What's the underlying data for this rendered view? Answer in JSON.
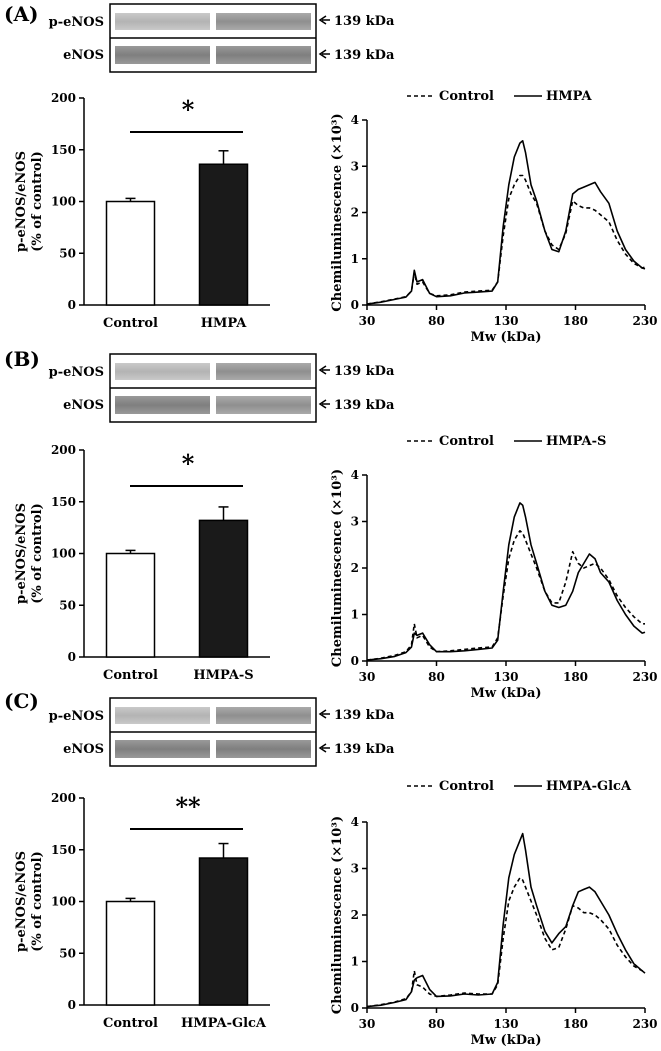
{
  "figure": {
    "panels": [
      {
        "label": "(A)",
        "blot": {
          "lanes": [
            "p-eNOS",
            "eNOS"
          ],
          "mw": "139 kDa"
        },
        "significance": "*"
      },
      {
        "label": "(B)",
        "blot": {
          "lanes": [
            "p-eNOS",
            "eNOS"
          ],
          "mw": "139 kDa"
        },
        "significance": "*"
      },
      {
        "label": "(C)",
        "blot": {
          "lanes": [
            "p-eNOS",
            "eNOS"
          ],
          "mw": "139 kDa"
        },
        "significance": "**"
      }
    ]
  },
  "chart_data": [
    {
      "type": "bar",
      "panel": "(A)",
      "categories": [
        "Control",
        "HMPA"
      ],
      "values": [
        100,
        136
      ],
      "errors": [
        3,
        13
      ],
      "colors": [
        "#ffffff",
        "#1a1a1a"
      ],
      "ylabel": "p-eNOS/eNOS\n(% of control)",
      "ylim": [
        0,
        200
      ],
      "yticks": [
        0,
        50,
        100,
        150,
        200
      ]
    },
    {
      "type": "line",
      "panel": "(A)",
      "xlabel": "Mw (kDa)",
      "ylabel": "Chemiluminescence (×10³)",
      "xlim": [
        30,
        230
      ],
      "ylim": [
        0,
        4
      ],
      "xticks": [
        30,
        80,
        130,
        180,
        230
      ],
      "yticks": [
        0,
        1,
        2,
        3,
        4
      ],
      "legend_position": "top",
      "series": [
        {
          "name": "Control",
          "style": "dashed",
          "x": [
            30,
            40,
            50,
            58,
            62,
            64,
            66,
            70,
            75,
            80,
            90,
            100,
            110,
            120,
            124,
            128,
            132,
            136,
            140,
            142,
            144,
            148,
            152,
            158,
            163,
            168,
            173,
            178,
            182,
            186,
            190,
            194,
            198,
            204,
            210,
            216,
            222,
            228,
            230
          ],
          "y": [
            0.02,
            0.07,
            0.13,
            0.18,
            0.3,
            0.7,
            0.45,
            0.5,
            0.25,
            0.2,
            0.22,
            0.28,
            0.3,
            0.32,
            0.5,
            1.5,
            2.3,
            2.6,
            2.8,
            2.8,
            2.7,
            2.4,
            2.2,
            1.6,
            1.3,
            1.2,
            1.55,
            2.25,
            2.15,
            2.1,
            2.1,
            2.05,
            1.95,
            1.8,
            1.4,
            1.1,
            0.9,
            0.8,
            0.82
          ]
        },
        {
          "name": "HMPA",
          "style": "solid",
          "x": [
            30,
            40,
            50,
            58,
            62,
            64,
            66,
            70,
            75,
            80,
            90,
            100,
            110,
            120,
            124,
            128,
            132,
            136,
            140,
            142,
            144,
            148,
            152,
            158,
            163,
            168,
            173,
            178,
            182,
            186,
            190,
            194,
            198,
            204,
            210,
            216,
            222,
            228,
            230
          ],
          "y": [
            0.02,
            0.06,
            0.12,
            0.17,
            0.3,
            0.75,
            0.5,
            0.55,
            0.25,
            0.18,
            0.2,
            0.26,
            0.28,
            0.3,
            0.5,
            1.7,
            2.6,
            3.2,
            3.5,
            3.55,
            3.3,
            2.6,
            2.25,
            1.6,
            1.2,
            1.15,
            1.6,
            2.4,
            2.5,
            2.55,
            2.6,
            2.65,
            2.45,
            2.2,
            1.6,
            1.2,
            0.95,
            0.8,
            0.78
          ]
        }
      ]
    },
    {
      "type": "bar",
      "panel": "(B)",
      "categories": [
        "Control",
        "HMPA-S"
      ],
      "values": [
        100,
        132
      ],
      "errors": [
        3,
        13
      ],
      "colors": [
        "#ffffff",
        "#1a1a1a"
      ],
      "ylabel": "p-eNOS/eNOS\n(% of control)",
      "ylim": [
        0,
        200
      ],
      "yticks": [
        0,
        50,
        100,
        150,
        200
      ]
    },
    {
      "type": "line",
      "panel": "(B)",
      "xlabel": "Mw (kDa)",
      "ylabel": "Chemiluminescence (×10³)",
      "xlim": [
        30,
        230
      ],
      "ylim": [
        0,
        4
      ],
      "xticks": [
        30,
        80,
        130,
        180,
        230
      ],
      "yticks": [
        0,
        1,
        2,
        3,
        4
      ],
      "legend_position": "top",
      "series": [
        {
          "name": "Control",
          "style": "dashed",
          "x": [
            30,
            40,
            50,
            58,
            62,
            64,
            66,
            70,
            75,
            80,
            90,
            100,
            110,
            120,
            124,
            128,
            132,
            136,
            140,
            142,
            144,
            148,
            152,
            158,
            163,
            168,
            173,
            178,
            182,
            186,
            190,
            194,
            198,
            204,
            210,
            216,
            222,
            228,
            230
          ],
          "y": [
            0.02,
            0.06,
            0.12,
            0.2,
            0.35,
            0.8,
            0.5,
            0.55,
            0.3,
            0.2,
            0.22,
            0.25,
            0.28,
            0.3,
            0.5,
            1.4,
            2.2,
            2.6,
            2.8,
            2.75,
            2.6,
            2.3,
            2.0,
            1.5,
            1.25,
            1.25,
            1.7,
            2.35,
            2.1,
            2.0,
            2.05,
            2.1,
            2.0,
            1.75,
            1.4,
            1.15,
            0.95,
            0.8,
            0.8
          ]
        },
        {
          "name": "HMPA-S",
          "style": "solid",
          "x": [
            30,
            40,
            50,
            58,
            62,
            64,
            66,
            70,
            75,
            80,
            90,
            100,
            110,
            120,
            124,
            128,
            132,
            136,
            140,
            142,
            144,
            148,
            152,
            158,
            163,
            168,
            173,
            178,
            182,
            186,
            190,
            194,
            198,
            204,
            210,
            216,
            222,
            228,
            230
          ],
          "y": [
            0.02,
            0.05,
            0.1,
            0.18,
            0.3,
            0.6,
            0.55,
            0.6,
            0.35,
            0.2,
            0.2,
            0.22,
            0.25,
            0.28,
            0.45,
            1.5,
            2.5,
            3.1,
            3.4,
            3.35,
            3.1,
            2.5,
            2.1,
            1.5,
            1.2,
            1.15,
            1.2,
            1.5,
            1.9,
            2.1,
            2.3,
            2.2,
            1.9,
            1.7,
            1.3,
            1.0,
            0.75,
            0.6,
            0.62
          ]
        }
      ]
    },
    {
      "type": "bar",
      "panel": "(C)",
      "categories": [
        "Control",
        "HMPA-GlcA"
      ],
      "values": [
        100,
        142
      ],
      "errors": [
        3,
        14
      ],
      "colors": [
        "#ffffff",
        "#1a1a1a"
      ],
      "ylabel": "p-eNOS/eNOS\n(% of control)",
      "ylim": [
        0,
        200
      ],
      "yticks": [
        0,
        50,
        100,
        150,
        200
      ]
    },
    {
      "type": "line",
      "panel": "(C)",
      "xlabel": "Mw (kDa)",
      "ylabel": "Chemiluminescence (×10³)",
      "xlim": [
        30,
        230
      ],
      "ylim": [
        0,
        4
      ],
      "xticks": [
        30,
        80,
        130,
        180,
        230
      ],
      "yticks": [
        0,
        1,
        2,
        3,
        4
      ],
      "legend_position": "top",
      "series": [
        {
          "name": "Control",
          "style": "dashed",
          "x": [
            30,
            40,
            50,
            58,
            62,
            64,
            66,
            70,
            75,
            80,
            90,
            100,
            110,
            120,
            124,
            128,
            132,
            136,
            140,
            142,
            144,
            148,
            152,
            158,
            163,
            168,
            173,
            178,
            182,
            186,
            190,
            194,
            198,
            204,
            210,
            216,
            222,
            228,
            230
          ],
          "y": [
            0.03,
            0.07,
            0.13,
            0.2,
            0.35,
            0.8,
            0.5,
            0.45,
            0.3,
            0.25,
            0.28,
            0.32,
            0.3,
            0.3,
            0.5,
            1.5,
            2.3,
            2.6,
            2.8,
            2.75,
            2.6,
            2.3,
            2.0,
            1.5,
            1.25,
            1.3,
            1.7,
            2.2,
            2.15,
            2.05,
            2.05,
            2.0,
            1.9,
            1.7,
            1.35,
            1.1,
            0.9,
            0.8,
            0.78
          ]
        },
        {
          "name": "HMPA-GlcA",
          "style": "solid",
          "x": [
            30,
            40,
            50,
            58,
            62,
            64,
            66,
            70,
            75,
            80,
            90,
            100,
            110,
            120,
            124,
            128,
            132,
            136,
            140,
            142,
            144,
            148,
            152,
            158,
            163,
            168,
            173,
            178,
            182,
            186,
            190,
            194,
            198,
            204,
            210,
            216,
            222,
            228,
            230
          ],
          "y": [
            0.03,
            0.06,
            0.12,
            0.18,
            0.35,
            0.6,
            0.65,
            0.7,
            0.4,
            0.25,
            0.26,
            0.3,
            0.28,
            0.3,
            0.55,
            1.8,
            2.8,
            3.3,
            3.6,
            3.75,
            3.4,
            2.6,
            2.2,
            1.65,
            1.4,
            1.6,
            1.75,
            2.2,
            2.5,
            2.55,
            2.6,
            2.5,
            2.3,
            2.0,
            1.6,
            1.25,
            0.95,
            0.8,
            0.75
          ]
        }
      ]
    }
  ]
}
